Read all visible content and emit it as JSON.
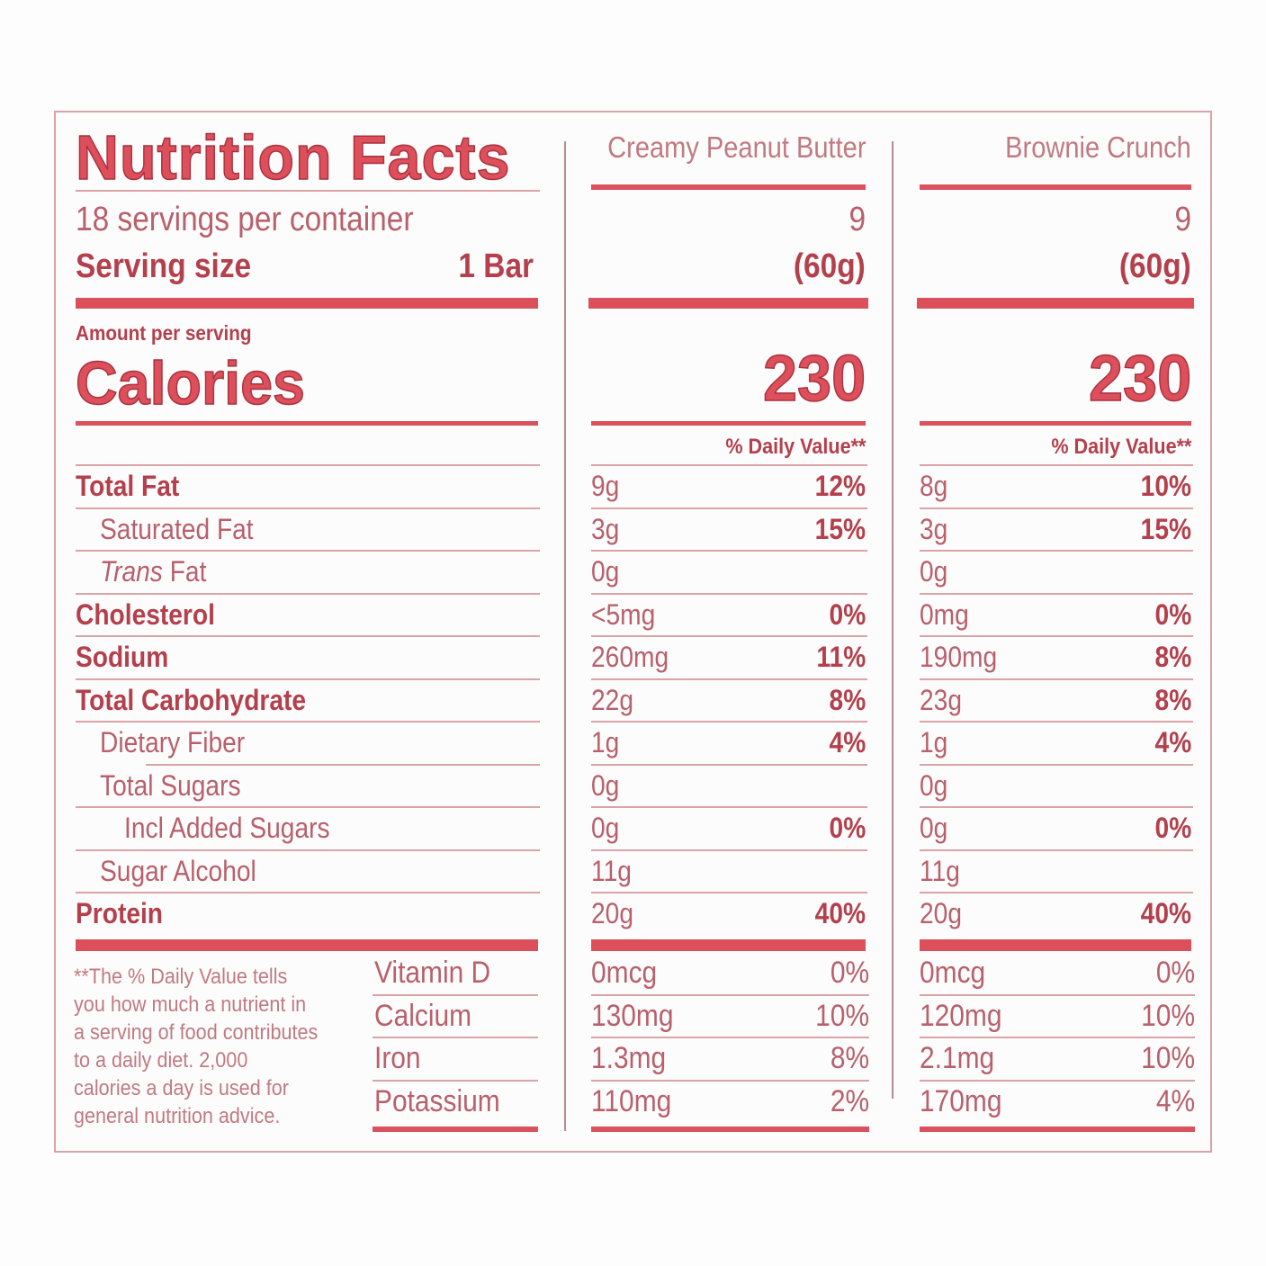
{
  "label": {
    "title": "Nutrition Facts",
    "servings_per_container": "18 servings per container",
    "serving_size_label": "Serving size",
    "serving_size_value": "1 Bar",
    "amount_per_serving": "Amount per serving",
    "calories_label": "Calories",
    "daily_value_header": "% Daily Value**",
    "footnote_lines": [
      "**The % Daily Value tells",
      "you how much a nutrient in",
      "a serving of food contributes",
      "to a daily diet. 2,000",
      "calories a day is used for",
      "general nutrition advice."
    ]
  },
  "products": [
    {
      "name": "Creamy Peanut Butter",
      "servings": "9",
      "serving_weight": "(60g)",
      "calories": "230",
      "nutrients": [
        {
          "amount": "9g",
          "dv": "12%"
        },
        {
          "amount": "3g",
          "dv": "15%"
        },
        {
          "amount": "0g",
          "dv": ""
        },
        {
          "amount": "<5mg",
          "dv": "0%"
        },
        {
          "amount": "260mg",
          "dv": "11%"
        },
        {
          "amount": "22g",
          "dv": "8%"
        },
        {
          "amount": "1g",
          "dv": "4%"
        },
        {
          "amount": "0g",
          "dv": ""
        },
        {
          "amount": "0g",
          "dv": "0%"
        },
        {
          "amount": "11g",
          "dv": ""
        },
        {
          "amount": "20g",
          "dv": "40%"
        }
      ],
      "vitamins": [
        {
          "amount": "0mcg",
          "dv": "0%"
        },
        {
          "amount": "130mg",
          "dv": "10%"
        },
        {
          "amount": "1.3mg",
          "dv": "8%"
        },
        {
          "amount": "110mg",
          "dv": "2%"
        }
      ]
    },
    {
      "name": "Brownie Crunch",
      "servings": "9",
      "serving_weight": "(60g)",
      "calories": "230",
      "nutrients": [
        {
          "amount": "8g",
          "dv": "10%"
        },
        {
          "amount": "3g",
          "dv": "15%"
        },
        {
          "amount": "0g",
          "dv": ""
        },
        {
          "amount": "0mg",
          "dv": "0%"
        },
        {
          "amount": "190mg",
          "dv": "8%"
        },
        {
          "amount": "23g",
          "dv": "8%"
        },
        {
          "amount": "1g",
          "dv": "4%"
        },
        {
          "amount": "0g",
          "dv": ""
        },
        {
          "amount": "0g",
          "dv": "0%"
        },
        {
          "amount": "11g",
          "dv": ""
        },
        {
          "amount": "20g",
          "dv": "40%"
        }
      ],
      "vitamins": [
        {
          "amount": "0mcg",
          "dv": "0%"
        },
        {
          "amount": "120mg",
          "dv": "10%"
        },
        {
          "amount": "2.1mg",
          "dv": "10%"
        },
        {
          "amount": "170mg",
          "dv": "4%"
        }
      ]
    }
  ],
  "nutrient_rows": [
    {
      "label": "Total Fat",
      "bold": true,
      "indent": 0
    },
    {
      "label": "Saturated Fat",
      "bold": false,
      "indent": 1
    },
    {
      "label_italic": "Trans",
      "label": " Fat",
      "bold": false,
      "indent": 1
    },
    {
      "label": "Cholesterol",
      "bold": true,
      "indent": 0
    },
    {
      "label": "Sodium",
      "bold": true,
      "indent": 0
    },
    {
      "label": "Total Carbohydrate",
      "bold": true,
      "indent": 0
    },
    {
      "label": "Dietary Fiber",
      "bold": false,
      "indent": 1
    },
    {
      "label": "Total Sugars",
      "bold": false,
      "indent": 1
    },
    {
      "label": "Incl Added Sugars",
      "bold": false,
      "indent": 2
    },
    {
      "label": "Sugar Alcohol",
      "bold": false,
      "indent": 1
    },
    {
      "label": "Protein",
      "bold": true,
      "indent": 0
    }
  ],
  "vitamin_rows": [
    {
      "label": "Vitamin D"
    },
    {
      "label": "Calcium"
    },
    {
      "label": "Iron"
    },
    {
      "label": "Potassium"
    }
  ],
  "colors": {
    "accent_red": "#dc4f5b",
    "text_rose": "#b8606b",
    "text_bold": "#b3404c",
    "rule_thin": "#d9a3a7",
    "border": "#d9a2a6"
  }
}
